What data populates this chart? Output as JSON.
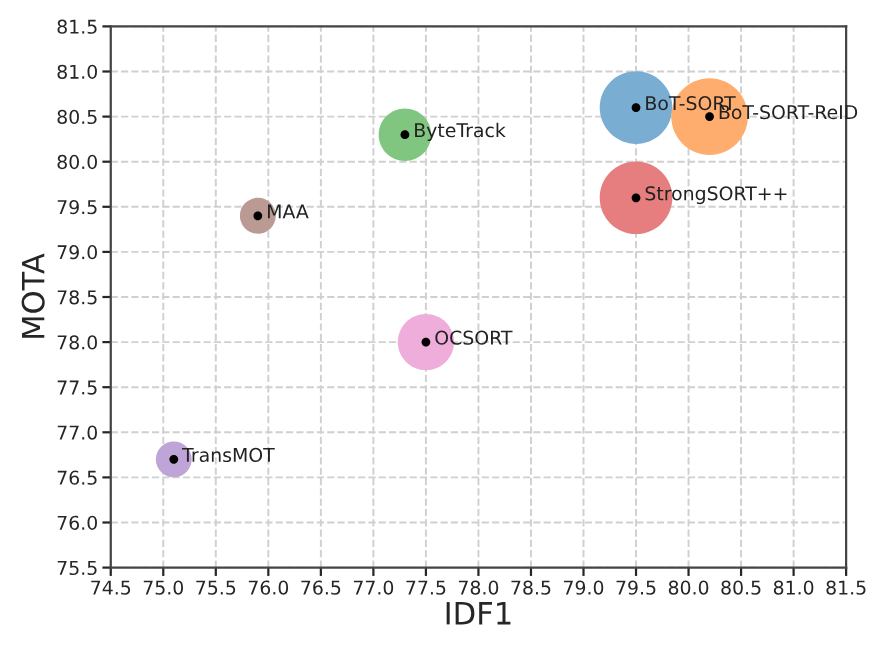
{
  "chart_data": {
    "type": "bubble",
    "xlabel": "IDF1",
    "ylabel": "MOTA",
    "grid": true,
    "marker": "circle",
    "xlim": [
      74.5,
      81.5
    ],
    "ylim": [
      75.5,
      81.5
    ],
    "xticks": [
      74.5,
      {
        "value": 75,
        "label": "75.0"
      },
      75.5,
      {
        "value": 76,
        "label": "76.0"
      },
      76.5,
      {
        "value": 77,
        "label": "77.0"
      },
      77.5,
      {
        "value": 78,
        "label": "78.0"
      },
      78.5,
      {
        "value": 79,
        "label": "79.0"
      },
      79.5,
      {
        "value": 80,
        "label": "80.0"
      },
      80.5,
      {
        "value": 81,
        "label": "81.0"
      },
      81.5
    ],
    "yticks": [
      75.5,
      {
        "value": 76,
        "label": "76.0"
      },
      76.5,
      {
        "value": 77,
        "label": "77.0"
      },
      77.5,
      {
        "value": 78,
        "label": "78.0"
      },
      78.5,
      {
        "value": 79,
        "label": "79.0"
      },
      79.5,
      {
        "value": 80,
        "label": "80.0"
      },
      80.5,
      {
        "value": 81,
        "label": "81.0"
      },
      81.5
    ],
    "series": [
      {
        "name": "BoT-SORT",
        "color": "#79add2",
        "x": [
          79.5
        ],
        "values": [
          80.6
        ],
        "sizes": [
          0.9
        ]
      },
      {
        "name": "BoT-SORT-ReID",
        "color": "#ffad6e",
        "x": [
          80.2
        ],
        "values": [
          80.5
        ],
        "sizes": [
          1
        ]
      },
      {
        "name": "StrongSORT++",
        "color": "#e67d7e",
        "x": [
          79.5
        ],
        "values": [
          79.6
        ],
        "sizes": [
          0.9
        ]
      },
      {
        "name": "ByteTrack",
        "color": "#80c680",
        "x": [
          77.3
        ],
        "values": [
          80.3
        ],
        "sizes": [
          0.47
        ]
      },
      {
        "name": "MAA",
        "color": "#ba9a93",
        "x": [
          75.9
        ],
        "values": [
          79.4
        ],
        "sizes": [
          0.22
        ]
      },
      {
        "name": "OCSORT",
        "color": "#eeadda",
        "x": [
          77.5
        ],
        "values": [
          78.0
        ],
        "sizes": [
          0.54
        ]
      },
      {
        "name": "TransMOT",
        "color": "#bea4d7",
        "x": [
          75.1
        ],
        "values": [
          76.7
        ],
        "sizes": [
          0.22
        ]
      }
    ]
  }
}
